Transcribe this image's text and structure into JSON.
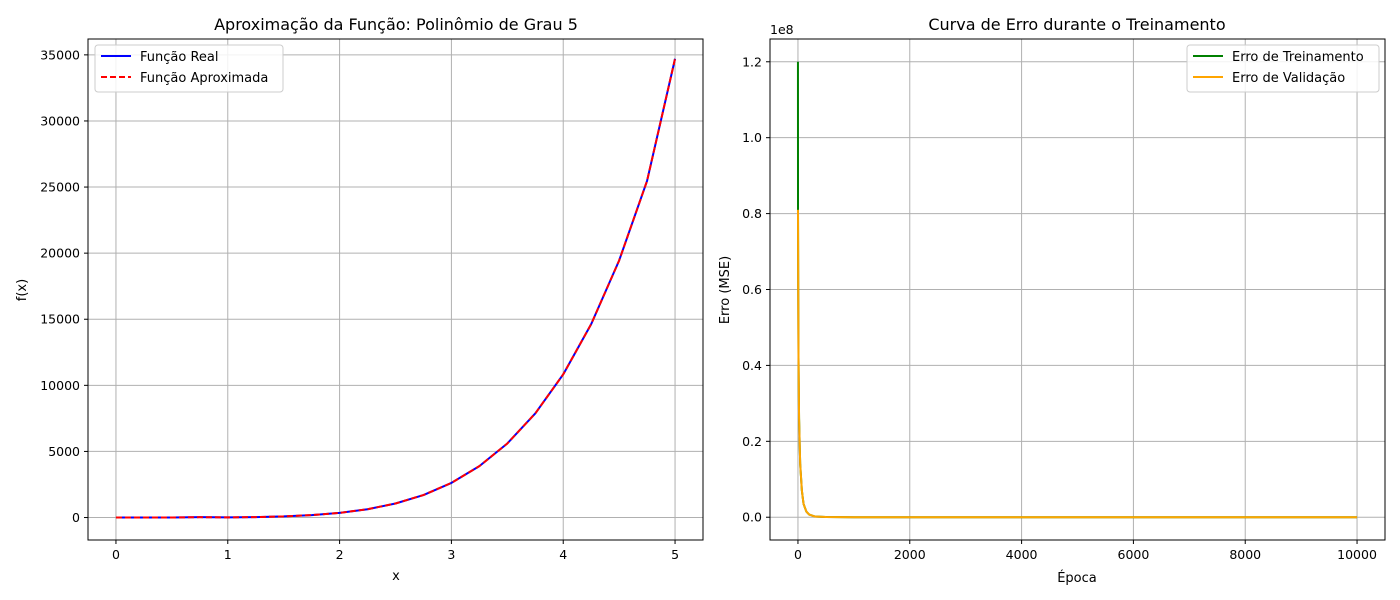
{
  "colors": {
    "real": "#0000ff",
    "approx": "#ff0000",
    "train": "#008000",
    "val": "#ffa500",
    "grid": "#b0b0b0"
  },
  "chart_data": [
    {
      "type": "line",
      "title": "Aproximação da Função: Polinômio de Grau 5",
      "xlabel": "x",
      "ylabel": "f(x)",
      "xlim": [
        -0.25,
        5.25
      ],
      "ylim": [
        -1700,
        36200
      ],
      "xticks": [
        0,
        1,
        2,
        3,
        4,
        5
      ],
      "xtick_labels": [
        "0",
        "1",
        "2",
        "3",
        "4",
        "5"
      ],
      "yticks": [
        0,
        5000,
        10000,
        15000,
        20000,
        25000,
        30000,
        35000
      ],
      "ytick_labels": [
        "0",
        "5000",
        "10000",
        "15000",
        "20000",
        "25000",
        "30000",
        "35000"
      ],
      "grid": true,
      "legend": "top-left",
      "series": [
        {
          "name": "Função Real",
          "style": "solid",
          "x": [
            0,
            0.25,
            0.5,
            0.75,
            1.0,
            1.25,
            1.5,
            1.75,
            2.0,
            2.25,
            2.5,
            2.75,
            3.0,
            3.25,
            3.5,
            3.75,
            4.0,
            4.25,
            4.5,
            4.75,
            5.0
          ],
          "y": [
            0,
            0,
            3,
            27,
            11,
            34,
            85,
            184,
            352,
            627,
            1062,
            1703,
            2619,
            3887,
            5602,
            7873,
            10832,
            14631,
            19445,
            25475,
            34707
          ]
        },
        {
          "name": "Função Aproximada",
          "style": "dashed",
          "x": [
            0,
            0.25,
            0.5,
            0.75,
            1.0,
            1.25,
            1.5,
            1.75,
            2.0,
            2.25,
            2.5,
            2.75,
            3.0,
            3.25,
            3.5,
            3.75,
            4.0,
            4.25,
            4.5,
            4.75,
            5.0
          ],
          "y": [
            0,
            0,
            3,
            27,
            11,
            34,
            85,
            184,
            352,
            627,
            1062,
            1703,
            2619,
            3887,
            5602,
            7873,
            10832,
            14631,
            19445,
            25475,
            34707
          ]
        }
      ]
    },
    {
      "type": "line",
      "title": "Curva de Erro durante o Treinamento",
      "xlabel": "Época",
      "ylabel": "Erro (MSE)",
      "y_offset_label": "1e8",
      "xlim": [
        -500,
        10500
      ],
      "ylim": [
        -6000000,
        126000000
      ],
      "xticks": [
        0,
        2000,
        4000,
        6000,
        8000,
        10000
      ],
      "xtick_labels": [
        "0",
        "2000",
        "4000",
        "6000",
        "8000",
        "10000"
      ],
      "yticks": [
        0,
        20000000,
        40000000,
        60000000,
        80000000,
        100000000,
        120000000
      ],
      "ytick_labels": [
        "0.0",
        "0.2",
        "0.4",
        "0.6",
        "0.8",
        "1.0",
        "1.2"
      ],
      "grid": true,
      "legend": "top-right",
      "series": [
        {
          "name": "Erro de Treinamento",
          "x": [
            0,
            1,
            5,
            10,
            20,
            40,
            70,
            100,
            150,
            200,
            300,
            500,
            1000,
            10000
          ],
          "y": [
            120000000,
            81000000,
            60000000,
            42000000,
            26000000,
            14000000,
            7000000,
            3500000,
            1500000,
            700000,
            200000,
            50000,
            10000,
            0
          ]
        },
        {
          "name": "Erro de Validação",
          "x": [
            0,
            1,
            5,
            10,
            20,
            40,
            70,
            100,
            150,
            200,
            300,
            500,
            1000,
            10000
          ],
          "y": [
            81000000,
            80000000,
            60000000,
            42000000,
            26000000,
            14000000,
            7000000,
            3500000,
            1500000,
            700000,
            200000,
            50000,
            10000,
            0
          ]
        }
      ]
    }
  ]
}
